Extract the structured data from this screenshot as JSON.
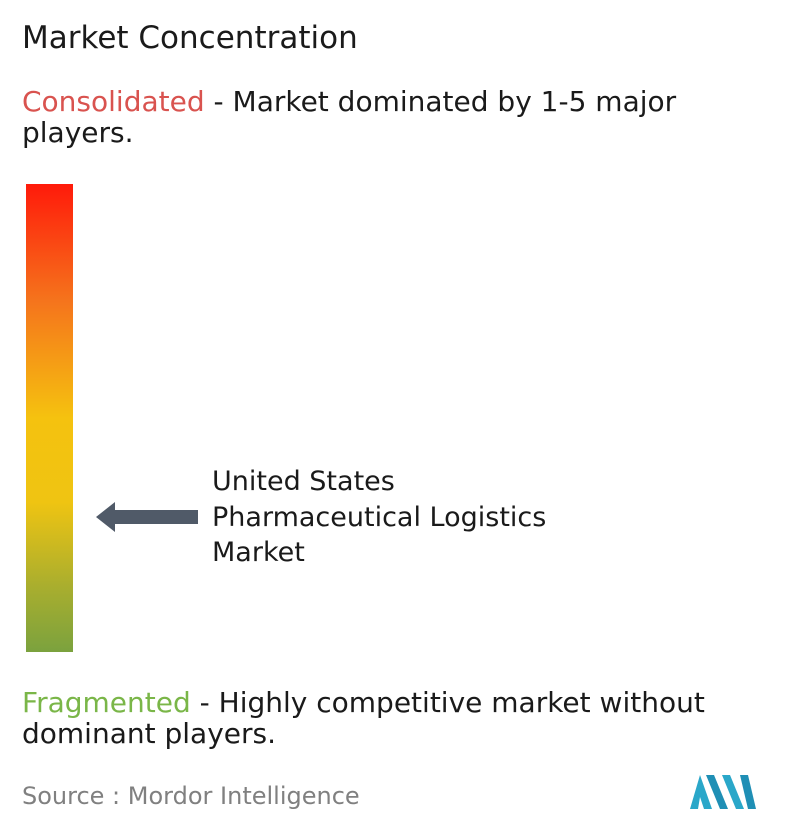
{
  "title": "Market Concentration",
  "consolidated": {
    "term": "Consolidated",
    "description": " - Market dominated by 1-5 major players.",
    "color": "#d9534f"
  },
  "fragmented": {
    "term": "Fragmented",
    "description": " - Highly competitive market without dominant players.",
    "color": "#7ab648"
  },
  "scale": {
    "top_color": "#ff1a0a",
    "middle_color": "#f5c20f",
    "bottom_color": "#7ba23e"
  },
  "market": {
    "label_lines": [
      "United States",
      "Pharmaceutical Logistics",
      "Market"
    ]
  },
  "source": "Source : Mordor Intelligence",
  "icons": {
    "pointer": "left-arrow-icon",
    "logo": "mordor-intelligence-logo"
  },
  "chart_data": {
    "type": "other",
    "title": "Market Concentration",
    "scale_top_label": "Consolidated",
    "scale_bottom_label": "Fragmented",
    "market": "United States Pharmaceutical Logistics Market",
    "position_fraction_from_fragmented": 0.3
  }
}
